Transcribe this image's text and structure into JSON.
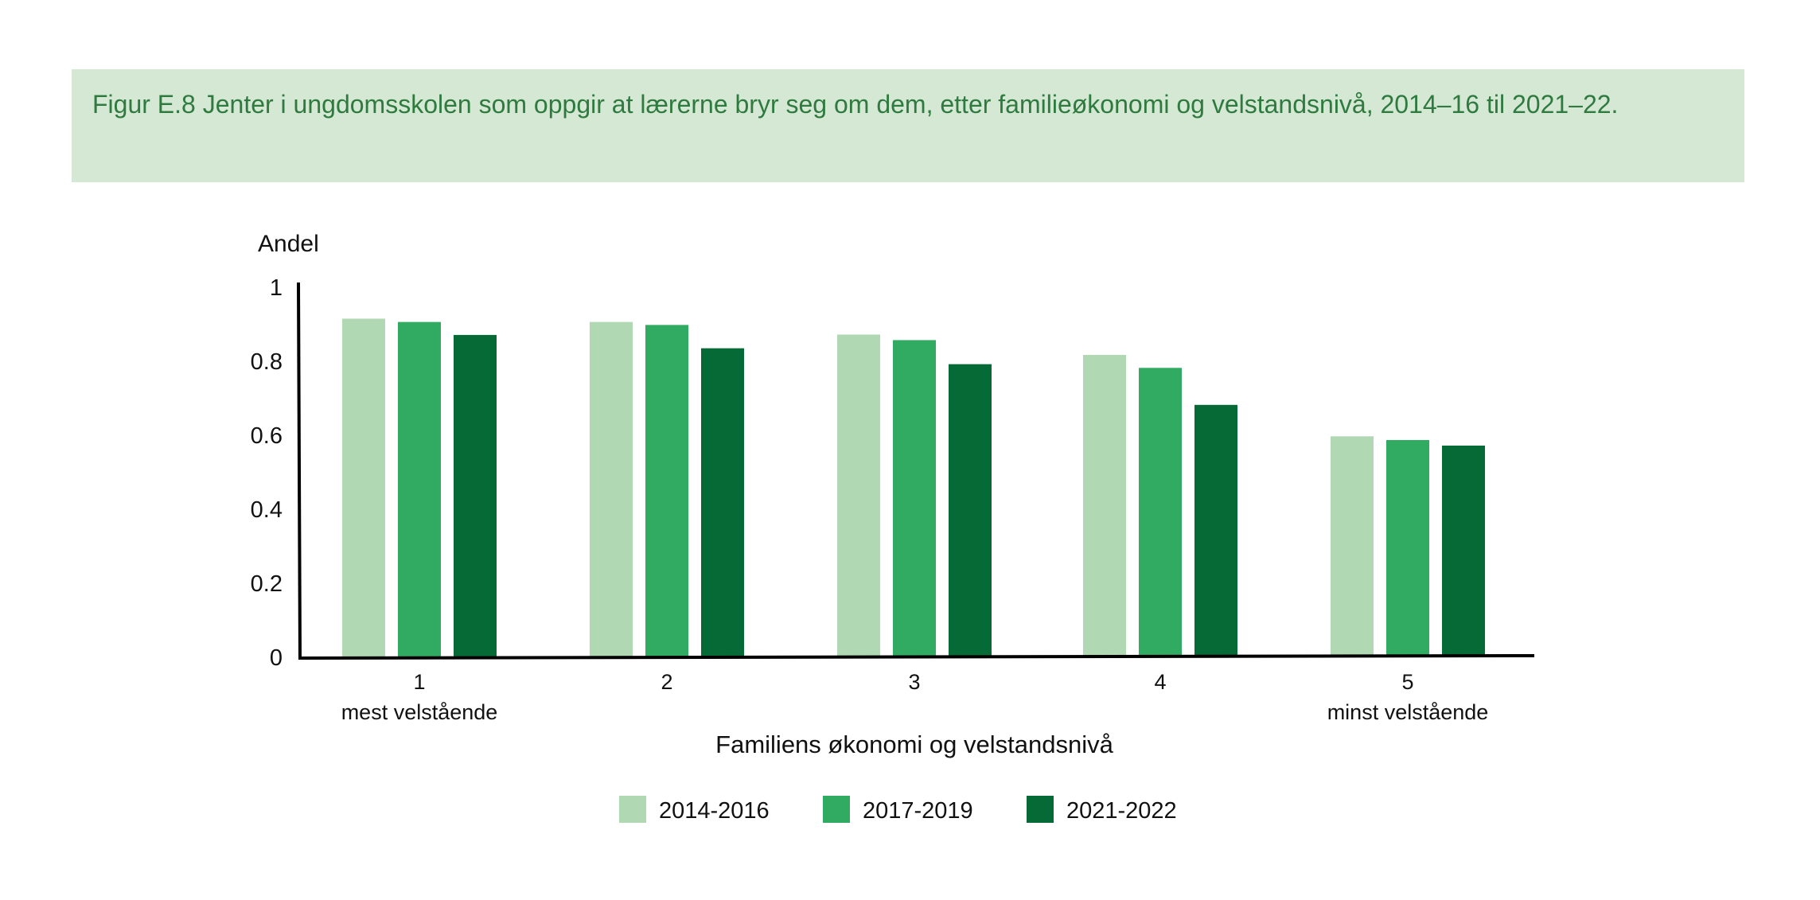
{
  "title": "Figur E.8 Jenter i ungdomsskolen som oppgir at lærerne bryr seg om dem, etter familieøkonomi og velstandsnivå, 2014–16 til 2021–22.",
  "chart_data": {
    "type": "bar",
    "title": "Figur E.8 Jenter i ungdomsskolen som oppgir at lærerne bryr seg om dem, etter familieøkonomi og velstandsnivå, 2014–16 til 2021–22.",
    "xlabel": "Familiens økonomi og velstandsnivå",
    "ylabel": "Andel",
    "categories": [
      "1",
      "2",
      "3",
      "4",
      "5"
    ],
    "category_sublabels": [
      "mest velstående",
      "",
      "",
      "",
      "minst velstående"
    ],
    "ylim": [
      0,
      1
    ],
    "yticks": [
      "0",
      "0.2",
      "0.4",
      "0.6",
      "0.8",
      "1"
    ],
    "grid": false,
    "legend_position": "bottom",
    "series": [
      {
        "name": "2014-2016",
        "color": "#b0d8b3",
        "values": [
          0.913,
          0.904,
          0.87,
          0.815,
          0.595
        ]
      },
      {
        "name": "2017-2019",
        "color": "#31aa62",
        "values": [
          0.904,
          0.896,
          0.855,
          0.78,
          0.585
        ]
      },
      {
        "name": "2021-2022",
        "color": "#066a36",
        "values": [
          0.869,
          0.833,
          0.79,
          0.68,
          0.57
        ]
      }
    ]
  }
}
